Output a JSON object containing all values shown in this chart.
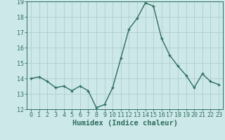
{
  "x": [
    0,
    1,
    2,
    3,
    4,
    5,
    6,
    7,
    8,
    9,
    10,
    11,
    12,
    13,
    14,
    15,
    16,
    17,
    18,
    19,
    20,
    21,
    22,
    23
  ],
  "y": [
    14.0,
    14.1,
    13.8,
    13.4,
    13.5,
    13.2,
    13.5,
    13.2,
    12.1,
    12.3,
    13.4,
    15.3,
    17.2,
    17.9,
    18.9,
    18.7,
    16.6,
    15.5,
    14.8,
    14.2,
    13.4,
    14.3,
    13.8,
    13.6
  ],
  "line_color": "#2e6e5e",
  "marker": "+",
  "marker_size": 3.5,
  "line_width": 1.0,
  "bg_color": "#cce8e8",
  "grid_color": "#b0cccc",
  "xlabel": "Humidex (Indice chaleur)",
  "ylim": [
    12,
    19
  ],
  "yticks": [
    12,
    13,
    14,
    15,
    16,
    17,
    18,
    19
  ],
  "tick_fontsize": 6.0,
  "xlabel_fontsize": 7.5,
  "tick_color": "#2e6e5e",
  "axis_color": "#2e6e5e",
  "markeredgewidth": 1.0
}
